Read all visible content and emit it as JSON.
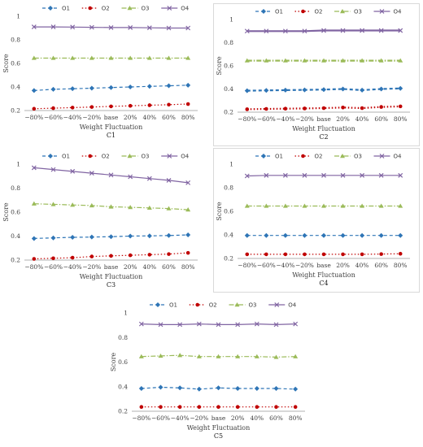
{
  "chart_data": [
    {
      "type": "line",
      "label": "C1",
      "xlabel": "Weight Fluctuation",
      "ylabel": "Score",
      "categories": [
        "−80%",
        "−60%",
        "−40%",
        "−20%",
        "base",
        "20%",
        "40%",
        "60%",
        "80%"
      ],
      "ylim": [
        0.2,
        1.0
      ],
      "yticks": [
        "0.2",
        "0.4",
        "0.6",
        "0.8",
        "1"
      ],
      "legend_position": "top",
      "series": [
        {
          "name": "O1",
          "values": [
            0.37,
            0.38,
            0.385,
            0.39,
            0.395,
            0.4,
            0.405,
            0.41,
            0.415
          ]
        },
        {
          "name": "O2",
          "values": [
            0.215,
            0.22,
            0.225,
            0.23,
            0.235,
            0.24,
            0.245,
            0.25,
            0.255
          ]
        },
        {
          "name": "O3",
          "values": [
            0.645,
            0.645,
            0.645,
            0.645,
            0.645,
            0.645,
            0.645,
            0.645,
            0.645
          ]
        },
        {
          "name": "O4",
          "values": [
            0.91,
            0.91,
            0.908,
            0.906,
            0.904,
            0.904,
            0.902,
            0.9,
            0.9
          ]
        }
      ]
    },
    {
      "type": "line",
      "label": "C2",
      "xlabel": "Weight Fluctuation",
      "ylabel": "Score",
      "categories": [
        "−80%",
        "−60%",
        "−40%",
        "−20%",
        "base",
        "20%",
        "40%",
        "60%",
        "80%"
      ],
      "ylim": [
        0.2,
        1.0
      ],
      "yticks": [
        "0.2",
        "0.4",
        "0.6",
        "0.8",
        "1"
      ],
      "legend_position": "top",
      "series": [
        {
          "name": "O1",
          "values": [
            0.385,
            0.388,
            0.39,
            0.392,
            0.395,
            0.4,
            0.39,
            0.4,
            0.405
          ]
        },
        {
          "name": "O2",
          "values": [
            0.225,
            0.228,
            0.23,
            0.232,
            0.235,
            0.24,
            0.235,
            0.245,
            0.25
          ]
        },
        {
          "name": "O3",
          "values": [
            0.645,
            0.645,
            0.645,
            0.645,
            0.645,
            0.645,
            0.645,
            0.645,
            0.645
          ]
        },
        {
          "name": "O4",
          "values": [
            0.9,
            0.9,
            0.9,
            0.9,
            0.905,
            0.905,
            0.905,
            0.905,
            0.905
          ]
        }
      ]
    },
    {
      "type": "line",
      "label": "C3",
      "xlabel": "Weight Fluctuation",
      "ylabel": "Score",
      "categories": [
        "−80%",
        "−60%",
        "−40%",
        "−20%",
        "base",
        "20%",
        "40%",
        "60%",
        "80%"
      ],
      "ylim": [
        0.2,
        1.0
      ],
      "yticks": [
        "0.2",
        "0.4",
        "0.6",
        "0.8",
        "1"
      ],
      "legend_position": "top",
      "series": [
        {
          "name": "O1",
          "values": [
            0.38,
            0.385,
            0.39,
            0.392,
            0.395,
            0.4,
            0.402,
            0.405,
            0.41
          ]
        },
        {
          "name": "O2",
          "values": [
            0.21,
            0.215,
            0.22,
            0.23,
            0.235,
            0.24,
            0.245,
            0.25,
            0.26
          ]
        },
        {
          "name": "O3",
          "values": [
            0.67,
            0.665,
            0.66,
            0.655,
            0.645,
            0.64,
            0.635,
            0.63,
            0.62
          ]
        },
        {
          "name": "O4",
          "values": [
            0.97,
            0.955,
            0.94,
            0.925,
            0.91,
            0.895,
            0.88,
            0.865,
            0.845
          ]
        }
      ]
    },
    {
      "type": "line",
      "label": "C4",
      "xlabel": "Weight Fluctuation",
      "ylabel": "Score",
      "categories": [
        "−80%",
        "−60%",
        "−40%",
        "−20%",
        "base",
        "20%",
        "40%",
        "60%",
        "80%"
      ],
      "ylim": [
        0.2,
        1.0
      ],
      "yticks": [
        "0.2",
        "0.4",
        "0.6",
        "0.8",
        "1"
      ],
      "legend_position": "top",
      "series": [
        {
          "name": "O1",
          "values": [
            0.395,
            0.395,
            0.395,
            0.395,
            0.395,
            0.395,
            0.395,
            0.395,
            0.395
          ]
        },
        {
          "name": "O2",
          "values": [
            0.235,
            0.235,
            0.235,
            0.235,
            0.235,
            0.235,
            0.235,
            0.237,
            0.24
          ]
        },
        {
          "name": "O3",
          "values": [
            0.645,
            0.645,
            0.645,
            0.645,
            0.645,
            0.645,
            0.645,
            0.645,
            0.645
          ]
        },
        {
          "name": "O4",
          "values": [
            0.9,
            0.905,
            0.905,
            0.905,
            0.905,
            0.905,
            0.905,
            0.905,
            0.905
          ]
        }
      ]
    },
    {
      "type": "line",
      "label": "C5",
      "xlabel": "Weight Fluctuation",
      "ylabel": "Score",
      "categories": [
        "−80%",
        "−60%",
        "−40%",
        "−20%",
        "base",
        "20%",
        "40%",
        "60%",
        "80%"
      ],
      "ylim": [
        0.2,
        1.0
      ],
      "yticks": [
        "0.2",
        "0.4",
        "0.6",
        "0.8",
        "1"
      ],
      "legend_position": "top",
      "series": [
        {
          "name": "O1",
          "values": [
            0.385,
            0.395,
            0.39,
            0.38,
            0.39,
            0.385,
            0.385,
            0.385,
            0.38
          ]
        },
        {
          "name": "O2",
          "values": [
            0.235,
            0.235,
            0.235,
            0.235,
            0.235,
            0.235,
            0.235,
            0.235,
            0.235
          ]
        },
        {
          "name": "O3",
          "values": [
            0.645,
            0.65,
            0.655,
            0.645,
            0.645,
            0.645,
            0.645,
            0.64,
            0.645
          ]
        },
        {
          "name": "O4",
          "values": [
            0.91,
            0.905,
            0.905,
            0.91,
            0.905,
            0.905,
            0.91,
            0.905,
            0.91
          ]
        }
      ]
    }
  ],
  "style": {
    "series_colors": [
      "#2E75B6",
      "#C00000",
      "#9BBB59",
      "#8064A2"
    ],
    "series_markers": [
      "diamond",
      "circle",
      "triangle",
      "cross"
    ],
    "series_dash": [
      "4,3",
      "1.5,2.5",
      "6,2,1.5,2",
      ""
    ],
    "axis_color": "#999999",
    "text_color": "#404040",
    "frame_color": "#d9d9d9",
    "bold_panel": 1
  }
}
